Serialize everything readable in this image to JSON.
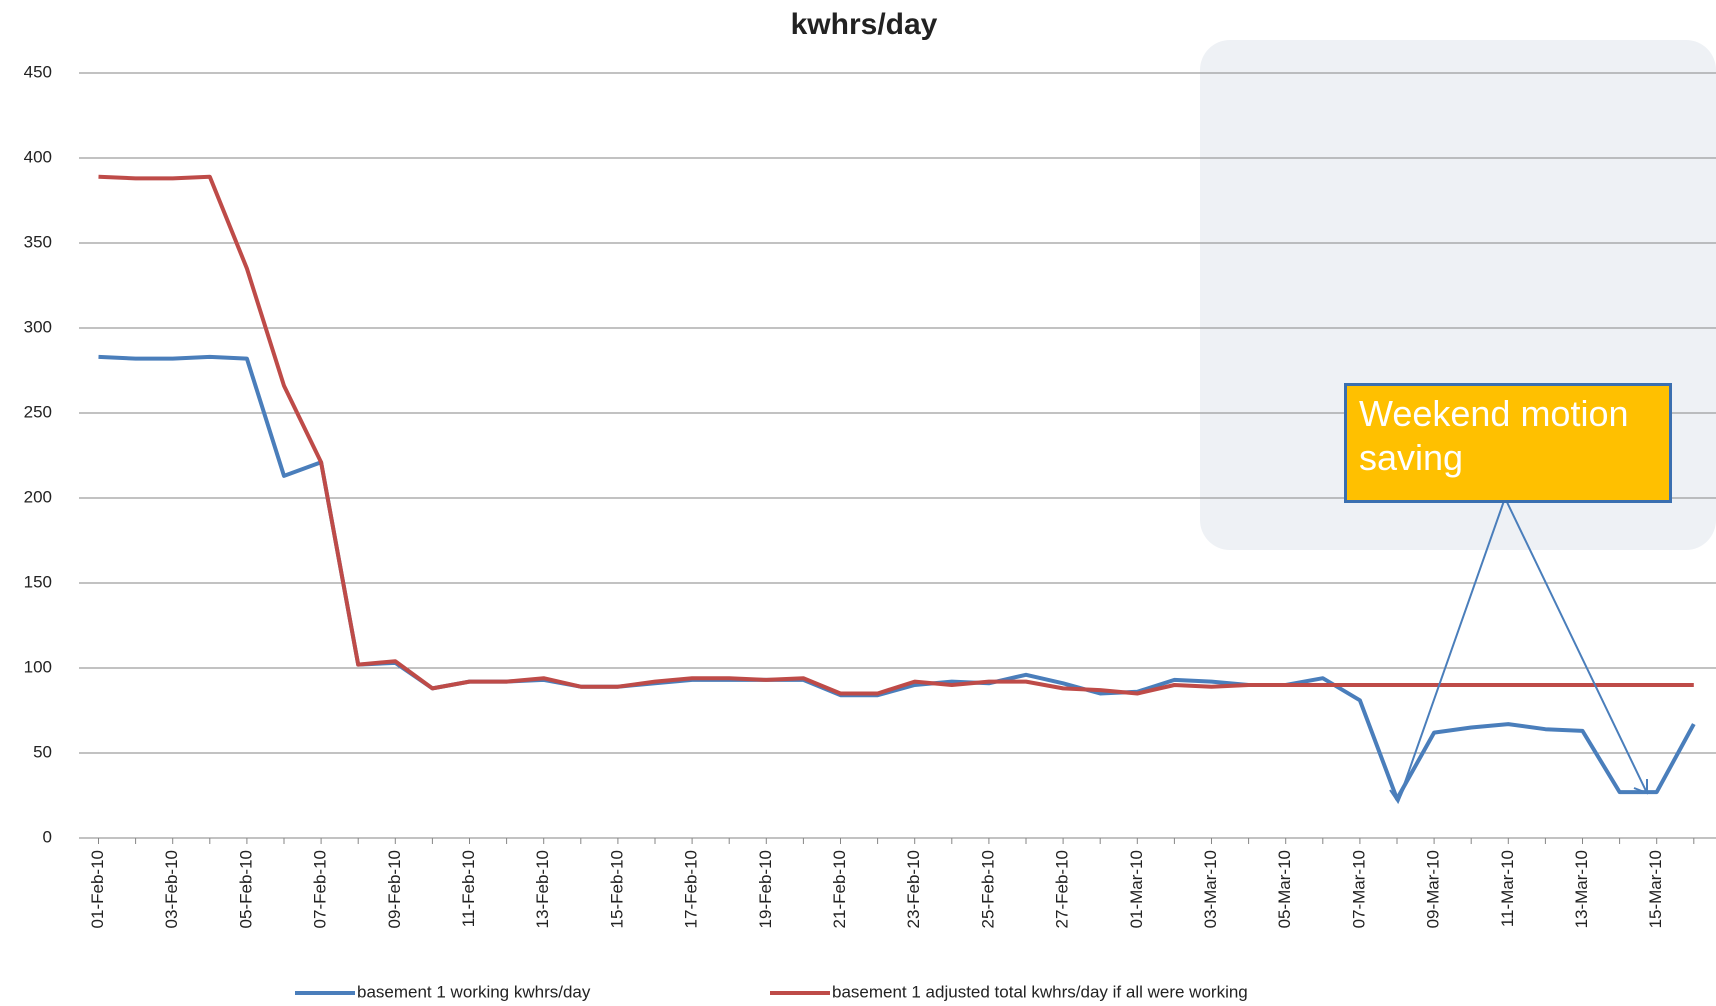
{
  "chart_data": {
    "type": "line",
    "title": "kwhrs/day",
    "categories": [
      "01-Feb-10",
      null,
      "03-Feb-10",
      null,
      "05-Feb-10",
      null,
      "07-Feb-10",
      null,
      "09-Feb-10",
      null,
      "11-Feb-10",
      null,
      "13-Feb-10",
      null,
      "15-Feb-10",
      null,
      "17-Feb-10",
      null,
      "19-Feb-10",
      null,
      "21-Feb-10",
      null,
      "23-Feb-10",
      null,
      "25-Feb-10",
      null,
      "27-Feb-10",
      null,
      "01-Mar-10",
      null,
      "03-Mar-10",
      null,
      "05-Mar-10",
      null,
      "07-Mar-10",
      null,
      "09-Mar-10",
      null,
      "11-Mar-10",
      null,
      "13-Mar-10",
      null,
      "15-Mar-10",
      null
    ],
    "series": [
      {
        "name": "basement 1 working kwhrs/day",
        "color": "#4a7ebb",
        "values": [
          283,
          282,
          282,
          283,
          282,
          213,
          221,
          102,
          103,
          88,
          92,
          92,
          93,
          89,
          89,
          91,
          93,
          93,
          93,
          93,
          84,
          84,
          90,
          92,
          91,
          96,
          91,
          85,
          86,
          93,
          92,
          90,
          90,
          94,
          81,
          23,
          62,
          65,
          67,
          64,
          63,
          27,
          27,
          67
        ]
      },
      {
        "name": "basement 1 adjusted total kwhrs/day if all were working",
        "color": "#be4b48",
        "values": [
          389,
          388,
          388,
          389,
          335,
          266,
          221,
          102,
          104,
          88,
          92,
          92,
          94,
          89,
          89,
          92,
          94,
          94,
          93,
          94,
          85,
          85,
          92,
          90,
          92,
          92,
          88,
          87,
          85,
          90,
          89,
          90,
          90,
          90,
          90,
          90,
          90,
          90,
          90,
          90,
          90,
          90,
          90,
          90
        ]
      }
    ],
    "ylim": [
      0,
      450
    ],
    "yticks": [
      0,
      50,
      100,
      150,
      200,
      250,
      300,
      350,
      400,
      450
    ],
    "grid": true,
    "annotation": "Weekend motion saving"
  }
}
